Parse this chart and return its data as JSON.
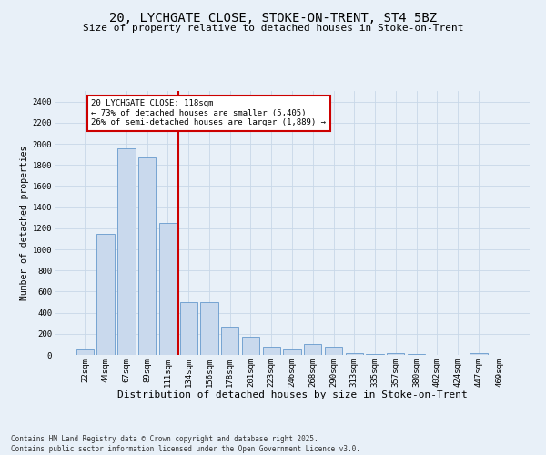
{
  "title1": "20, LYCHGATE CLOSE, STOKE-ON-TRENT, ST4 5BZ",
  "title2": "Size of property relative to detached houses in Stoke-on-Trent",
  "xlabel": "Distribution of detached houses by size in Stoke-on-Trent",
  "ylabel": "Number of detached properties",
  "categories": [
    "22sqm",
    "44sqm",
    "67sqm",
    "89sqm",
    "111sqm",
    "134sqm",
    "156sqm",
    "178sqm",
    "201sqm",
    "223sqm",
    "246sqm",
    "268sqm",
    "290sqm",
    "313sqm",
    "335sqm",
    "357sqm",
    "380sqm",
    "402sqm",
    "424sqm",
    "447sqm",
    "469sqm"
  ],
  "values": [
    55,
    1150,
    1960,
    1870,
    1250,
    500,
    500,
    270,
    170,
    75,
    50,
    100,
    80,
    15,
    5,
    20,
    5,
    3,
    3,
    20,
    3
  ],
  "bar_color": "#c9d9ed",
  "bar_edge_color": "#6699cc",
  "vline_color": "#cc0000",
  "vline_pos": 4.5,
  "annotation_text": "20 LYCHGATE CLOSE: 118sqm\n← 73% of detached houses are smaller (5,405)\n26% of semi-detached houses are larger (1,889) →",
  "annotation_box_edgecolor": "#cc0000",
  "annotation_bg": "#ffffff",
  "ylim": [
    0,
    2500
  ],
  "yticks": [
    0,
    200,
    400,
    600,
    800,
    1000,
    1200,
    1400,
    1600,
    1800,
    2000,
    2200,
    2400
  ],
  "grid_color": "#c8d8e8",
  "bg_color": "#e8f0f8",
  "footnote": "Contains HM Land Registry data © Crown copyright and database right 2025.\nContains public sector information licensed under the Open Government Licence v3.0.",
  "title1_fontsize": 10,
  "title2_fontsize": 8,
  "xlabel_fontsize": 8,
  "ylabel_fontsize": 7,
  "tick_fontsize": 6.5,
  "annotation_fontsize": 6.5,
  "footnote_fontsize": 5.5
}
